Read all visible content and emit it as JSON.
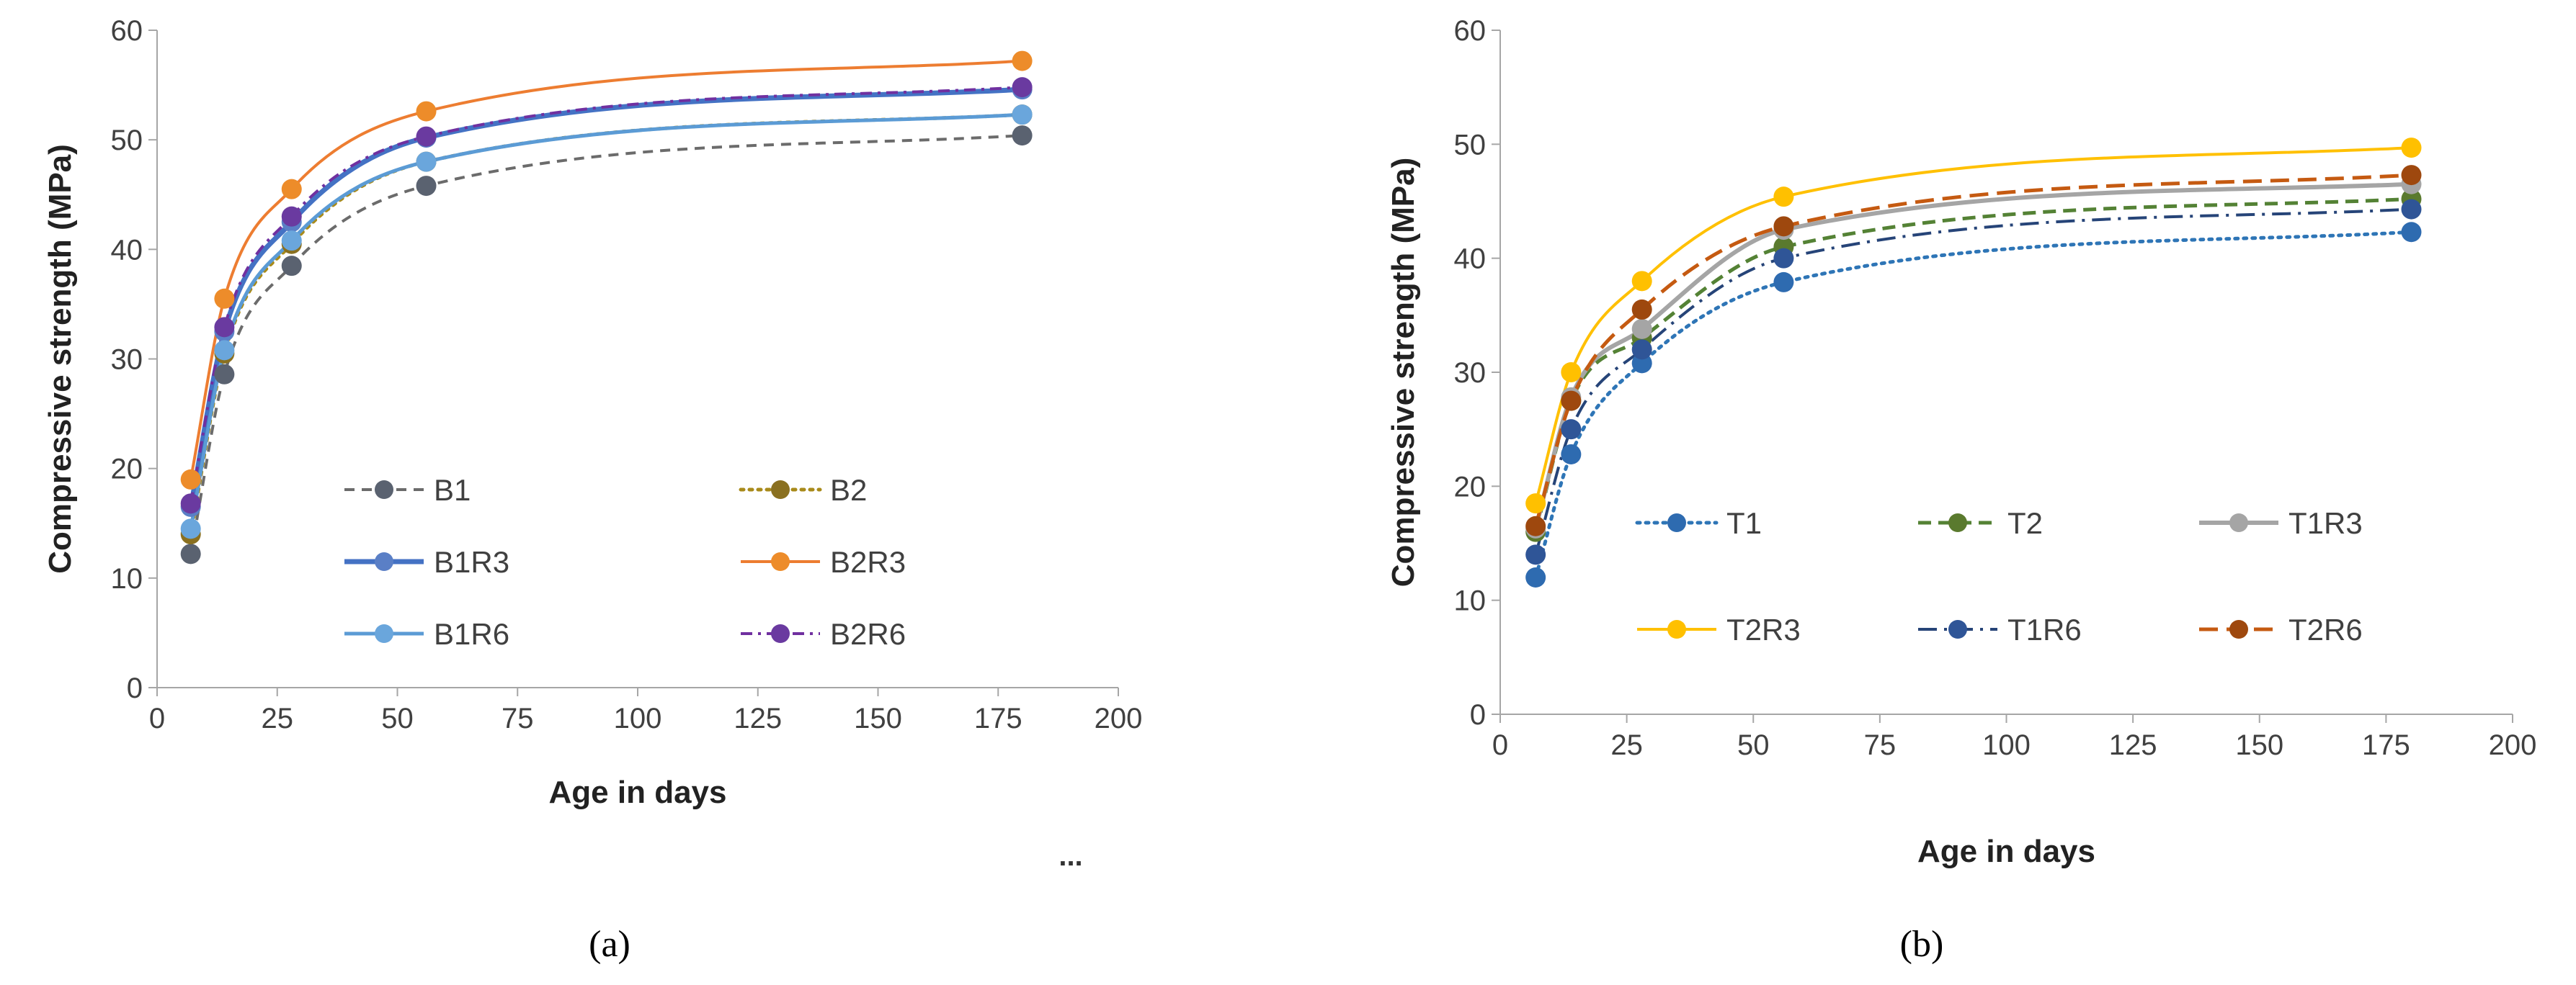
{
  "chart_data": [
    {
      "type": "line",
      "panel_label": "(a)",
      "trailing_mark": "...",
      "xlabel": "Age in days",
      "ylabel": "Compressive strength (MPa)",
      "xlim": [
        0,
        200
      ],
      "ylim": [
        0,
        60
      ],
      "xticks": [
        0,
        25,
        50,
        75,
        100,
        125,
        150,
        175,
        200
      ],
      "yticks": [
        0,
        10,
        20,
        30,
        40,
        50,
        60
      ],
      "x": [
        7,
        14,
        28,
        56,
        180
      ],
      "series": [
        {
          "name": "B1",
          "values": [
            12.2,
            28.6,
            38.5,
            45.8,
            50.4
          ],
          "color": "#6b6b6b",
          "dash": "14 10",
          "width": 4,
          "marker": "#5a6270"
        },
        {
          "name": "B2",
          "values": [
            14.0,
            30.5,
            40.5,
            48.0,
            52.3
          ],
          "color": "#a88a1a",
          "dash": "4 8",
          "width": 5,
          "marker": "#8a7020"
        },
        {
          "name": "B1R3",
          "values": [
            16.5,
            32.5,
            42.5,
            50.2,
            54.6
          ],
          "color": "#4472c4",
          "dash": "",
          "width": 7,
          "marker": "#5a7fc6"
        },
        {
          "name": "B2R3",
          "values": [
            19.0,
            35.5,
            45.5,
            52.6,
            57.2
          ],
          "color": "#ed7d31",
          "dash": "",
          "width": 4,
          "marker": "#ed8c2a"
        },
        {
          "name": "B1R6",
          "values": [
            14.5,
            30.8,
            40.8,
            48.0,
            52.3
          ],
          "color": "#5b9bd5",
          "dash": "",
          "width": 5,
          "marker": "#6aa6dc"
        },
        {
          "name": "B2R6",
          "values": [
            16.8,
            32.9,
            43.0,
            50.3,
            54.8
          ],
          "color": "#7030a0",
          "dash": "16 8 4 8",
          "width": 4,
          "marker": "#6a3aa0"
        }
      ]
    },
    {
      "type": "line",
      "panel_label": "(b)",
      "xlabel": "Age in days",
      "ylabel": "Compressive strength (MPa)",
      "xlim": [
        0,
        200
      ],
      "ylim": [
        0,
        60
      ],
      "xticks": [
        0,
        25,
        50,
        75,
        100,
        125,
        150,
        175,
        200
      ],
      "yticks": [
        0,
        10,
        20,
        30,
        40,
        50,
        60
      ],
      "x": [
        7,
        14,
        28,
        56,
        180
      ],
      "series": [
        {
          "name": "T1",
          "values": [
            12.0,
            22.8,
            30.8,
            37.9,
            42.3
          ],
          "color": "#2e75b6",
          "dash": "4 8",
          "width": 5,
          "marker": "#2e6bb0"
        },
        {
          "name": "T2",
          "values": [
            16.0,
            27.5,
            33.0,
            41.0,
            45.2
          ],
          "color": "#548235",
          "dash": "18 10",
          "width": 5,
          "marker": "#5a7a2e"
        },
        {
          "name": "T1R3",
          "values": [
            16.3,
            27.8,
            33.8,
            42.5,
            46.5
          ],
          "color": "#a5a5a5",
          "dash": "",
          "width": 6,
          "marker": "#a5a5a5"
        },
        {
          "name": "T2R3",
          "values": [
            18.5,
            30.0,
            38.0,
            45.4,
            49.7
          ],
          "color": "#ffc000",
          "dash": "",
          "width": 4,
          "marker": "#ffc000"
        },
        {
          "name": "T1R6",
          "values": [
            14.0,
            25.0,
            32.0,
            40.0,
            44.3
          ],
          "color": "#264478",
          "dash": "26 10 4 10",
          "width": 4,
          "marker": "#2f5597"
        },
        {
          "name": "T2R6",
          "values": [
            16.5,
            27.5,
            35.5,
            42.8,
            47.3
          ],
          "color": "#c55a11",
          "dash": "26 12",
          "width": 5,
          "marker": "#9e480e"
        }
      ]
    }
  ]
}
